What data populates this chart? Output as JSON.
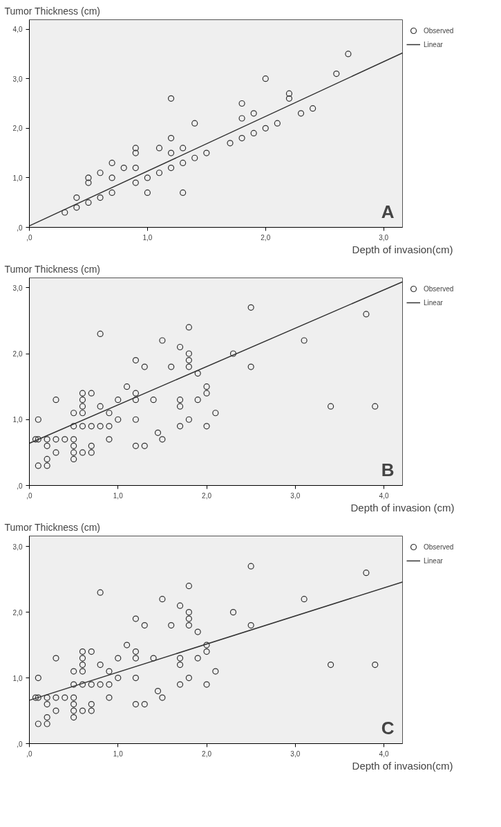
{
  "chart_data": [
    {
      "type": "scatter",
      "ylabel": "Tumor Thickness (cm)",
      "xlabel": "Depth of invasion(cm)",
      "annotations": [
        "A"
      ],
      "legend": "top right",
      "grid": false,
      "xlim": [
        0,
        3.16
      ],
      "ylim": [
        0,
        4.19
      ],
      "xticks": [
        {
          "value": 0,
          "label": ",0"
        },
        {
          "value": 1,
          "label": "1,0"
        },
        {
          "value": 2,
          "label": "2,0"
        },
        {
          "value": 3,
          "label": "3,0"
        }
      ],
      "yticks": [
        {
          "value": 0,
          "label": ",0"
        },
        {
          "value": 1,
          "label": "1,0"
        },
        {
          "value": 2,
          "label": "2,0"
        },
        {
          "value": 3,
          "label": "3,0"
        },
        {
          "value": 4,
          "label": "4,0"
        }
      ],
      "series": [
        {
          "name": "Observed",
          "type": "scatter",
          "marker": "circle",
          "color": "#333333",
          "x": [
            0.3,
            0.4,
            0.4,
            0.5,
            0.5,
            0.5,
            0.6,
            0.6,
            0.7,
            0.7,
            0.7,
            0.8,
            0.9,
            0.9,
            0.9,
            0.9,
            1.0,
            1.0,
            1.1,
            1.1,
            1.2,
            1.2,
            1.2,
            1.2,
            1.3,
            1.3,
            1.3,
            1.4,
            1.4,
            1.5,
            1.7,
            1.8,
            1.8,
            1.8,
            1.9,
            1.9,
            2.0,
            2.0,
            2.1,
            2.2,
            2.2,
            2.3,
            2.4,
            2.6,
            2.7
          ],
          "values": [
            0.3,
            0.6,
            0.4,
            1.0,
            0.9,
            0.5,
            1.1,
            0.6,
            1.3,
            1.0,
            0.7,
            1.2,
            1.6,
            1.5,
            1.2,
            0.9,
            1.0,
            0.7,
            1.6,
            1.1,
            2.6,
            1.8,
            1.5,
            1.2,
            1.6,
            1.3,
            0.7,
            2.1,
            1.4,
            1.5,
            1.7,
            2.5,
            2.2,
            1.8,
            2.3,
            1.9,
            3.0,
            2.0,
            2.1,
            2.7,
            2.6,
            2.3,
            2.4,
            3.1,
            3.5
          ]
        },
        {
          "name": "Linear",
          "type": "line",
          "color": "#333333",
          "x": [
            0,
            3.16
          ],
          "values": [
            0.03,
            3.52
          ]
        }
      ]
    },
    {
      "type": "scatter",
      "ylabel": "Tumor Thickness (cm)",
      "xlabel": "Depth of invasion (cm)",
      "annotations": [
        "B"
      ],
      "legend": "top right",
      "grid": false,
      "xlim": [
        0,
        4.21
      ],
      "ylim": [
        0,
        3.15
      ],
      "xticks": [
        {
          "value": 0,
          "label": ",0"
        },
        {
          "value": 1,
          "label": "1,0"
        },
        {
          "value": 2,
          "label": "2,0"
        },
        {
          "value": 3,
          "label": "3,0"
        },
        {
          "value": 4,
          "label": "4,0"
        }
      ],
      "yticks": [
        {
          "value": 0,
          "label": ",0"
        },
        {
          "value": 1,
          "label": "1,0"
        },
        {
          "value": 2,
          "label": "2,0"
        },
        {
          "value": 3,
          "label": "3,0"
        }
      ],
      "series": [
        {
          "name": "Observed",
          "type": "scatter",
          "marker": "circle",
          "color": "#333333",
          "x": [
            0.07,
            0.1,
            0.1,
            0.1,
            0.2,
            0.2,
            0.2,
            0.2,
            0.3,
            0.3,
            0.3,
            0.4,
            0.5,
            0.5,
            0.5,
            0.5,
            0.5,
            0.5,
            0.6,
            0.6,
            0.6,
            0.6,
            0.6,
            0.6,
            0.7,
            0.7,
            0.7,
            0.7,
            0.8,
            0.8,
            0.8,
            0.9,
            0.9,
            0.9,
            1.0,
            1.0,
            1.1,
            1.2,
            1.2,
            1.2,
            1.2,
            1.2,
            1.3,
            1.3,
            1.4,
            1.45,
            1.5,
            1.5,
            1.6,
            1.7,
            1.7,
            1.7,
            1.7,
            1.8,
            1.8,
            1.8,
            1.8,
            1.8,
            1.9,
            1.9,
            2.0,
            2.0,
            2.0,
            2.1,
            2.3,
            2.5,
            2.5,
            3.1,
            3.4,
            3.8,
            3.9
          ],
          "values": [
            0.7,
            0.7,
            1.0,
            0.3,
            0.7,
            0.6,
            0.4,
            0.3,
            1.3,
            0.7,
            0.5,
            0.7,
            1.1,
            0.9,
            0.7,
            0.6,
            0.5,
            0.4,
            1.4,
            1.3,
            1.2,
            1.1,
            0.9,
            0.5,
            1.4,
            0.9,
            0.6,
            0.5,
            2.3,
            1.2,
            0.9,
            1.1,
            0.9,
            0.7,
            1.3,
            1.0,
            1.5,
            1.9,
            1.4,
            1.3,
            1.0,
            0.6,
            1.8,
            0.6,
            1.3,
            0.8,
            2.2,
            0.7,
            1.8,
            2.1,
            1.3,
            1.2,
            0.9,
            2.4,
            2.0,
            1.9,
            1.8,
            1.0,
            1.7,
            1.3,
            1.5,
            1.4,
            0.9,
            1.1,
            2.0,
            2.7,
            1.8,
            2.2,
            1.2,
            2.6,
            1.2
          ]
        },
        {
          "name": "Linear",
          "type": "line",
          "color": "#333333",
          "x": [
            0,
            4.21
          ],
          "values": [
            0.64,
            3.09
          ]
        }
      ]
    },
    {
      "type": "scatter",
      "ylabel": "Tumor Thickness (cm)",
      "xlabel": "Depth of invasion(cm)",
      "annotations": [
        "C"
      ],
      "legend": "top right",
      "grid": false,
      "xlim": [
        0,
        4.21
      ],
      "ylim": [
        0,
        3.16
      ],
      "xticks": [
        {
          "value": 0,
          "label": ",0"
        },
        {
          "value": 1,
          "label": "1,0"
        },
        {
          "value": 2,
          "label": "2,0"
        },
        {
          "value": 3,
          "label": "3,0"
        },
        {
          "value": 4,
          "label": "4,0"
        }
      ],
      "yticks": [
        {
          "value": 0,
          "label": ",0"
        },
        {
          "value": 1,
          "label": "1,0"
        },
        {
          "value": 2,
          "label": "2,0"
        },
        {
          "value": 3,
          "label": "3,0"
        }
      ],
      "series": [
        {
          "name": "Observed",
          "type": "scatter",
          "marker": "circle",
          "color": "#333333",
          "x": [
            0.07,
            0.1,
            0.1,
            0.1,
            0.2,
            0.2,
            0.2,
            0.2,
            0.3,
            0.3,
            0.3,
            0.4,
            0.5,
            0.5,
            0.5,
            0.5,
            0.5,
            0.5,
            0.6,
            0.6,
            0.6,
            0.6,
            0.6,
            0.6,
            0.7,
            0.7,
            0.7,
            0.7,
            0.8,
            0.8,
            0.8,
            0.9,
            0.9,
            0.9,
            1.0,
            1.0,
            1.1,
            1.2,
            1.2,
            1.2,
            1.2,
            1.2,
            1.3,
            1.3,
            1.4,
            1.45,
            1.5,
            1.5,
            1.6,
            1.7,
            1.7,
            1.7,
            1.7,
            1.8,
            1.8,
            1.8,
            1.8,
            1.8,
            1.9,
            1.9,
            2.0,
            2.0,
            2.0,
            2.1,
            2.3,
            2.5,
            2.5,
            3.1,
            3.4,
            3.8,
            3.9
          ],
          "values": [
            0.7,
            0.7,
            1.0,
            0.3,
            0.7,
            0.6,
            0.4,
            0.3,
            1.3,
            0.7,
            0.5,
            0.7,
            1.1,
            0.9,
            0.7,
            0.6,
            0.5,
            0.4,
            1.4,
            1.3,
            1.2,
            1.1,
            0.9,
            0.5,
            1.4,
            0.9,
            0.6,
            0.5,
            2.3,
            1.2,
            0.9,
            1.1,
            0.9,
            0.7,
            1.3,
            1.0,
            1.5,
            1.9,
            1.4,
            1.3,
            1.0,
            0.6,
            1.8,
            0.6,
            1.3,
            0.8,
            2.2,
            0.7,
            1.8,
            2.1,
            1.3,
            1.2,
            0.9,
            2.4,
            2.0,
            1.9,
            1.8,
            1.0,
            1.7,
            1.3,
            1.5,
            1.4,
            0.9,
            1.1,
            2.0,
            2.7,
            1.8,
            2.2,
            1.2,
            2.6,
            1.2
          ]
        },
        {
          "name": "Linear",
          "type": "line",
          "color": "#333333",
          "x": [
            0,
            4.21
          ],
          "values": [
            0.66,
            2.46
          ]
        }
      ]
    }
  ]
}
